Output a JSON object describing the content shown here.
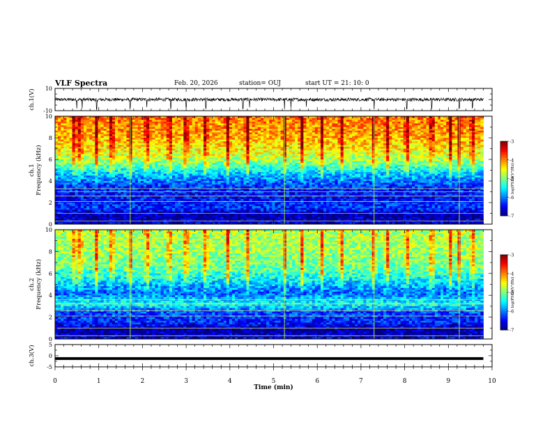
{
  "header": {
    "title": "VLF Spectra",
    "date": "Feb. 20, 2026",
    "station": "station= OUJ",
    "start": "start  UT =   21: 10: 0"
  },
  "colors": {
    "background": "#ffffff",
    "ink": "#000000",
    "line_green": "#a8f040",
    "line_yellow": "#e8e860"
  },
  "chart_data": [
    {
      "type": "line",
      "panel": "waveform-ch1",
      "ylabel": "ch.1(V)",
      "xlim": [
        0,
        10
      ],
      "ylim": [
        -10,
        10
      ],
      "yticks": [
        {
          "value": 10,
          "label": "10"
        },
        {
          "value": -10,
          "label": "-10"
        }
      ],
      "series": [
        {
          "values_description_free": true,
          "x_range": [
            0,
            9.8
          ],
          "baseline": 0,
          "amplitude": 1.5,
          "spike_times": [
            0.5,
            0.62,
            0.95,
            1.72,
            2.1,
            2.65,
            3.0,
            3.45,
            4.3,
            4.45,
            5.25,
            5.4,
            5.75,
            7.3,
            8.05,
            8.62,
            9.25,
            9.55
          ]
        }
      ]
    },
    {
      "type": "heatmap",
      "panel": "spectrogram-ch1",
      "ylabel": "Frequency (kHz)",
      "ylabel_ch": "ch.1",
      "xlim": [
        0,
        10
      ],
      "ylim": [
        0,
        10
      ],
      "x_data_extent": [
        0,
        9.8
      ],
      "yticks": [
        {
          "value": 0,
          "label": "0"
        },
        {
          "value": 2,
          "label": "2"
        },
        {
          "value": 4,
          "label": "4"
        },
        {
          "value": 6,
          "label": "6"
        },
        {
          "value": 8,
          "label": "8"
        },
        {
          "value": 10,
          "label": "10"
        }
      ],
      "colorbar": {
        "label": "log(PSD)(V²/Hz)",
        "range": [
          -7,
          -3
        ],
        "ticks": [
          {
            "value": -3,
            "label": "-3"
          },
          {
            "value": -4,
            "label": "-4"
          },
          {
            "value": -5,
            "label": "-5"
          },
          {
            "value": -6,
            "label": "-6"
          },
          {
            "value": -7,
            "label": "-7"
          }
        ]
      },
      "level_profile_khz": [
        [
          0,
          -6.6
        ],
        [
          0.8,
          -6.9
        ],
        [
          1.5,
          -6.3
        ],
        [
          2.5,
          -6.5
        ],
        [
          3.5,
          -6.3
        ],
        [
          4.5,
          -5.8
        ],
        [
          5.5,
          -5.1
        ],
        [
          6.5,
          -4.6
        ],
        [
          8,
          -4.2
        ],
        [
          10,
          -4.0
        ]
      ],
      "bursts_min": [
        0.45,
        0.58,
        0.95,
        1.3,
        1.72,
        2.1,
        2.62,
        3.0,
        3.45,
        3.95,
        4.4,
        5.25,
        5.65,
        6.1,
        6.55,
        7.3,
        7.6,
        8.05,
        8.62,
        9.05,
        9.25,
        9.55
      ],
      "line_freqs_khz": [
        0.3,
        1.0,
        2.1,
        2.6,
        3.0,
        3.3
      ],
      "vertical_lines_min": [
        1.72,
        5.25,
        7.3,
        9.25
      ]
    },
    {
      "type": "heatmap",
      "panel": "spectrogram-ch2",
      "ylabel": "Frequency (kHz)",
      "ylabel_ch": "ch.2",
      "xlim": [
        0,
        10
      ],
      "ylim": [
        0,
        10
      ],
      "x_data_extent": [
        0,
        9.8
      ],
      "yticks": [
        {
          "value": 0,
          "label": "0"
        },
        {
          "value": 2,
          "label": "2"
        },
        {
          "value": 4,
          "label": "4"
        },
        {
          "value": 6,
          "label": "6"
        },
        {
          "value": 8,
          "label": "8"
        },
        {
          "value": 10,
          "label": "10"
        }
      ],
      "colorbar": {
        "label": "log(PSD)(V²/Hz)",
        "range": [
          -7,
          -3
        ],
        "ticks": [
          {
            "value": -3,
            "label": "-3"
          },
          {
            "value": -4,
            "label": "-4"
          },
          {
            "value": -5,
            "label": "-5"
          },
          {
            "value": -6,
            "label": "-6"
          },
          {
            "value": -7,
            "label": "-7"
          }
        ]
      },
      "level_profile_khz": [
        [
          0,
          -6.6
        ],
        [
          0.8,
          -6.9
        ],
        [
          1.5,
          -6.4
        ],
        [
          2.5,
          -6.2
        ],
        [
          3.2,
          -5.4
        ],
        [
          4.2,
          -6.1
        ],
        [
          5.5,
          -5.5
        ],
        [
          6.5,
          -5.1
        ],
        [
          8,
          -4.9
        ],
        [
          10,
          -4.8
        ]
      ],
      "bursts_min": [
        0.45,
        0.58,
        0.95,
        1.3,
        1.72,
        2.1,
        2.62,
        3.0,
        3.45,
        3.95,
        4.4,
        5.25,
        5.65,
        6.1,
        6.55,
        7.3,
        7.6,
        8.05,
        8.62,
        9.05,
        9.25,
        9.55
      ],
      "line_freqs_khz": [
        0.3,
        1.0,
        2.1,
        2.6,
        3.2,
        3.6
      ],
      "vertical_lines_min": [
        1.72,
        5.25,
        7.3,
        9.25
      ]
    },
    {
      "type": "line",
      "panel": "waveform-ch3",
      "ylabel": "ch.3(V)",
      "xlabel": "Time (min)",
      "xlim": [
        0,
        10
      ],
      "ylim": [
        -5,
        5
      ],
      "xticks": [
        {
          "value": 0,
          "label": "0"
        },
        {
          "value": 1,
          "label": "1"
        },
        {
          "value": 2,
          "label": "2"
        },
        {
          "value": 3,
          "label": "3"
        },
        {
          "value": 4,
          "label": "4"
        },
        {
          "value": 5,
          "label": "5"
        },
        {
          "value": 6,
          "label": "6"
        },
        {
          "value": 7,
          "label": "7"
        },
        {
          "value": 8,
          "label": "8"
        },
        {
          "value": 9,
          "label": "9"
        },
        {
          "value": 10,
          "label": "10"
        }
      ],
      "yticks": [
        {
          "value": 5,
          "label": "5"
        },
        {
          "value": 0,
          "label": "0"
        },
        {
          "value": -5,
          "label": "-5"
        }
      ],
      "series": [
        {
          "x_range": [
            0,
            9.8
          ],
          "value": -1.3
        }
      ]
    }
  ]
}
